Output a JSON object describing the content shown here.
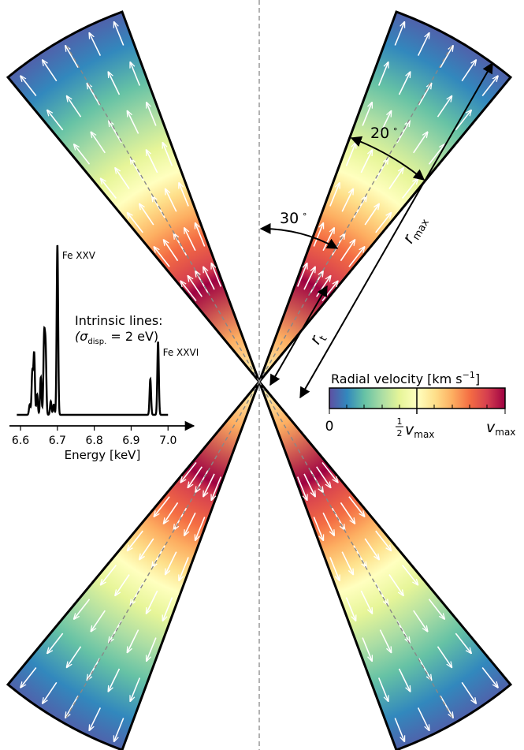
{
  "diagram": {
    "angles": {
      "axis_to_cone_label": "30",
      "cone_width_label": "20",
      "degree_symbol": "∘"
    },
    "radii": {
      "turnover_symbol": "r",
      "turnover_subscript": "t",
      "max_symbol": "r",
      "max_subscript": "max"
    },
    "colorbar": {
      "title": "Radial velocity [km s",
      "title_exponent": "−1",
      "title_close": "]",
      "tick_zero": "0",
      "tick_half_num": "1",
      "tick_half_den": "2",
      "tick_half_symbol": "v",
      "tick_half_subscript": "max",
      "tick_max_symbol": "v",
      "tick_max_subscript": "max",
      "colors": [
        "#5e4fa2",
        "#3288bd",
        "#66c2a5",
        "#abdda4",
        "#e6f598",
        "#ffffbf",
        "#fee08b",
        "#fdae61",
        "#f46d43",
        "#d53e4f",
        "#9e0142"
      ]
    },
    "cone_colors": {
      "inner": "#9e0142",
      "outer": "#5e4fa2"
    }
  },
  "chart_data": {
    "type": "line",
    "title": "",
    "xlabel": "Energy [keV]",
    "ylabel": "",
    "xlim": [
      6.57,
      7.07
    ],
    "xticks": [
      "6.6",
      "6.7",
      "6.8",
      "6.9",
      "7.0"
    ],
    "annotation_title": "Intrinsic lines:",
    "annotation_sigma_symbol": "(σ",
    "annotation_sigma_subscript": "disp.",
    "annotation_sigma_value": " = 2 eV)",
    "series": [
      {
        "lines": [
          {
            "label": "",
            "energy": 6.625,
            "height": 0.06
          },
          {
            "label": "",
            "energy": 6.632,
            "height": 0.25
          },
          {
            "label": "",
            "energy": 6.637,
            "height": 0.36
          },
          {
            "label": "",
            "energy": 6.645,
            "height": 0.12
          },
          {
            "label": "",
            "energy": 6.655,
            "height": 0.22
          },
          {
            "label": "",
            "energy": 6.664,
            "height": 0.44
          },
          {
            "label": "",
            "energy": 6.668,
            "height": 0.38
          },
          {
            "label": "",
            "energy": 6.682,
            "height": 0.08
          },
          {
            "label": "",
            "energy": 6.69,
            "height": 0.06
          },
          {
            "label": "Fe XXV",
            "energy": 6.7,
            "height": 1.0
          },
          {
            "label": "",
            "energy": 6.952,
            "height": 0.21
          },
          {
            "label": "Fe XXVI",
            "energy": 6.973,
            "height": 0.43
          }
        ],
        "sigma_keV": 0.002
      }
    ]
  }
}
